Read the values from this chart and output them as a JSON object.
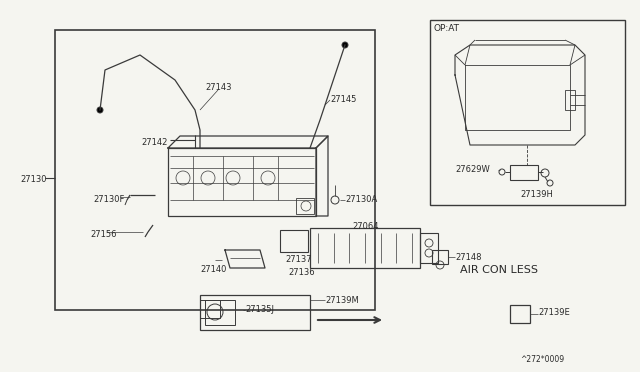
{
  "bg_color": "#f5f5f0",
  "line_color": "#3a3a3a",
  "text_color": "#2a2a2a",
  "part_code": "^272*0009",
  "inset_label": "OP:AT",
  "air_con_label": "AIR CON LESS"
}
